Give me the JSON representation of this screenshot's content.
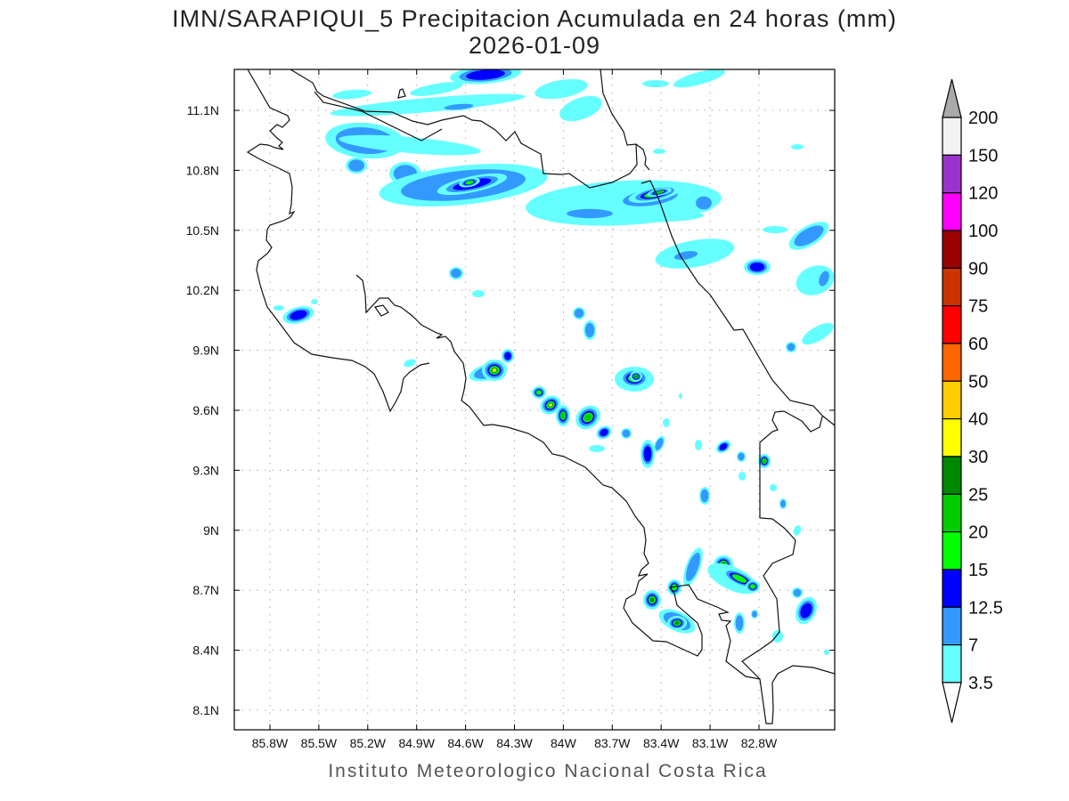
{
  "title": "IMN/SARAPIQUI_5 Precipitacion Acumulada en 24 horas (mm)",
  "date": "2026-01-09",
  "footer": "Instituto Meteorologico Nacional Costa Rica",
  "map": {
    "lon_labels": [
      "85.8W",
      "85.5W",
      "85.2W",
      "84.9W",
      "84.6W",
      "84.3W",
      "84W",
      "83.7W",
      "83.4W",
      "83.1W",
      "82.8W"
    ],
    "lat_labels": [
      "11.1N",
      "10.8N",
      "10.5N",
      "10.2N",
      "9.9N",
      "9.6N",
      "9.3N",
      "9N",
      "8.7N",
      "8.4N",
      "8.1N"
    ],
    "units": "mm"
  },
  "colorbar": {
    "labels": [
      "200",
      "150",
      "120",
      "100",
      "90",
      "75",
      "60",
      "50",
      "40",
      "30",
      "25",
      "20",
      "15",
      "12.5",
      "7",
      "3.5"
    ],
    "colors": [
      "#f2f2f2",
      "#9933cc",
      "#ff00ff",
      "#990000",
      "#cc3300",
      "#ff0000",
      "#ff6600",
      "#ffcc00",
      "#ffff00",
      "#008800",
      "#00cc00",
      "#00ff00",
      "#0000ff",
      "#3399ff",
      "#66ffff"
    ],
    "over_color": "#aaaaaa",
    "under_color": "#ffffff"
  }
}
